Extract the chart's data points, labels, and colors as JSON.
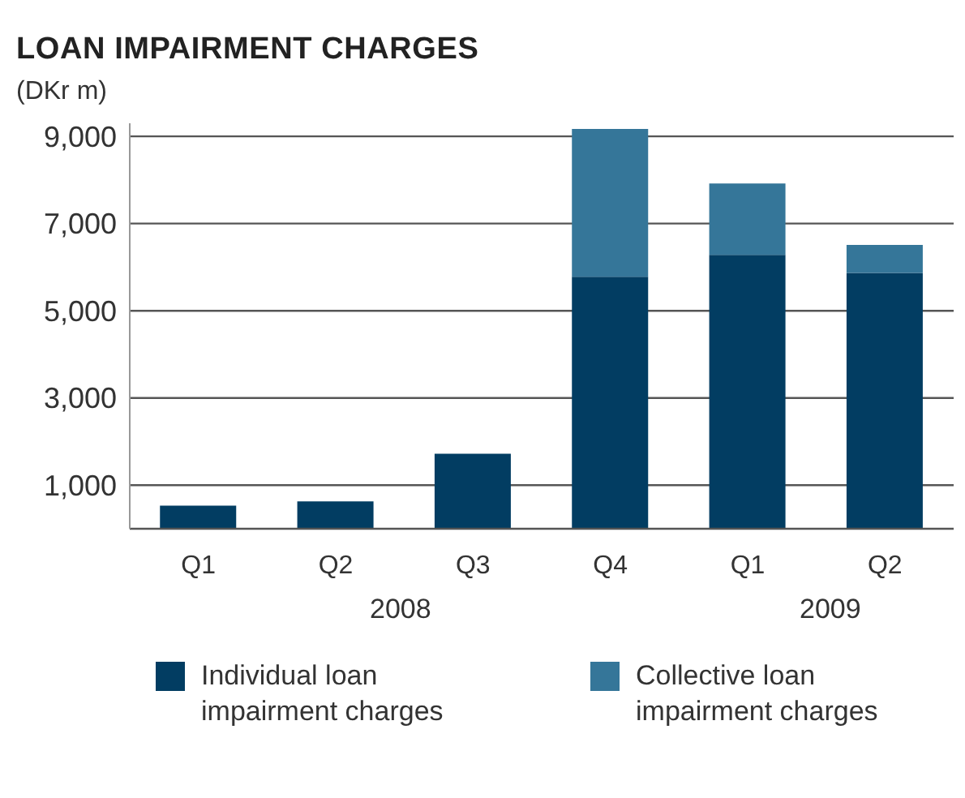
{
  "chart_data": {
    "type": "bar",
    "title": "LOAN IMPAIRMENT CHARGES",
    "ylabel": "(DKr m)",
    "categories": [
      "Q1",
      "Q2",
      "Q3",
      "Q4",
      "Q1",
      "Q2"
    ],
    "stacked": true,
    "series": [
      {
        "name": "Individual loan impairment charges",
        "color": "#023d62",
        "values": [
          530,
          630,
          1720,
          5780,
          6280,
          5870
        ]
      },
      {
        "name": "Collective loan impairment charges",
        "color": "#357699",
        "values": [
          0,
          0,
          0,
          3390,
          1640,
          640
        ]
      }
    ],
    "ylim": [
      0,
      9300
    ],
    "yticks": [
      {
        "value": 1000,
        "label": "1,000"
      },
      {
        "value": 3000,
        "label": "3,000"
      },
      {
        "value": 5000,
        "label": "5,000"
      },
      {
        "value": 7000,
        "label": "7,000"
      },
      {
        "value": 9000,
        "label": "9,000"
      }
    ],
    "grid": "y",
    "legend": "bottom",
    "annotations": [
      "2008",
      "2009"
    ]
  }
}
